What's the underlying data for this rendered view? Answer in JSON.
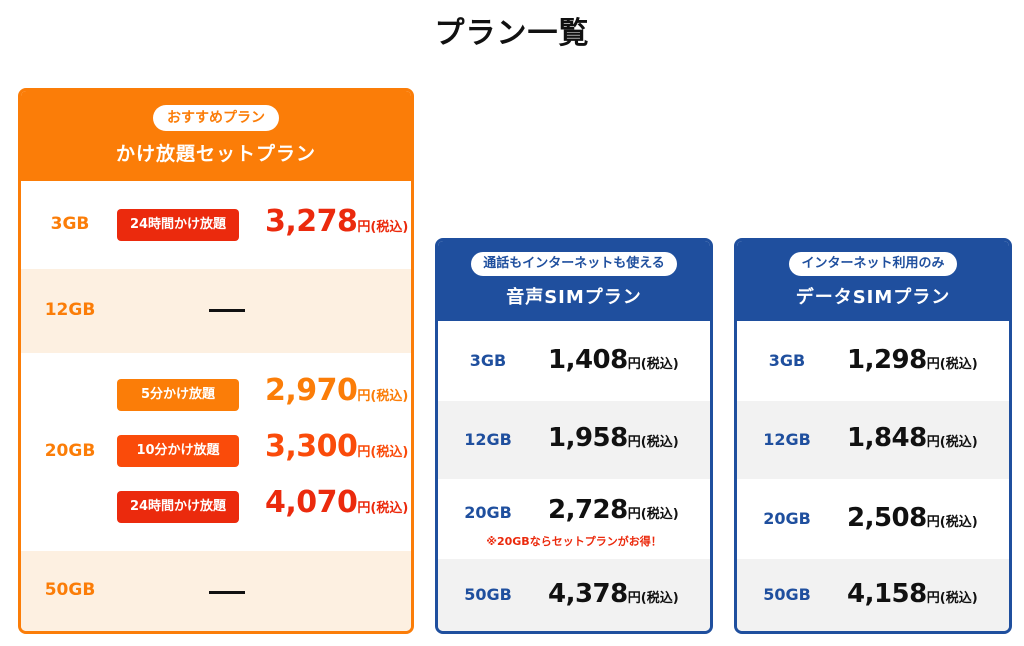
{
  "page": {
    "title": "プラン一覧"
  },
  "unit_label": "円(税込)",
  "set_plan": {
    "badge": "おすすめプラン",
    "title": "かけ放題セットプラン",
    "rows": [
      {
        "capacity": "3GB",
        "options": [
          {
            "tag": "24時間かけ放題",
            "price": "3,278"
          }
        ]
      },
      {
        "capacity": "12GB",
        "dash": "—"
      },
      {
        "capacity": "20GB",
        "options": [
          {
            "tag": "5分かけ放題",
            "price": "2,970"
          },
          {
            "tag": "10分かけ放題",
            "price": "3,300"
          },
          {
            "tag": "24時間かけ放題",
            "price": "4,070"
          }
        ]
      },
      {
        "capacity": "50GB",
        "dash": "—"
      }
    ]
  },
  "voice_plan": {
    "badge": "通話もインターネットも使える",
    "title": "音声SIMプラン",
    "rows": [
      {
        "capacity": "3GB",
        "price": "1,408"
      },
      {
        "capacity": "12GB",
        "price": "1,958"
      },
      {
        "capacity": "20GB",
        "price": "2,728",
        "note": "※20GBならセットプランがお得！"
      },
      {
        "capacity": "50GB",
        "price": "4,378"
      }
    ]
  },
  "data_plan": {
    "badge": "インターネット利用のみ",
    "title": "データSIMプラン",
    "rows": [
      {
        "capacity": "3GB",
        "price": "1,298"
      },
      {
        "capacity": "12GB",
        "price": "1,848"
      },
      {
        "capacity": "20GB",
        "price": "2,508"
      },
      {
        "capacity": "50GB",
        "price": "4,158"
      }
    ]
  },
  "colors": {
    "orange": "#fb7d08",
    "red": "#eb2a0d",
    "blue": "#1f4f9e"
  }
}
